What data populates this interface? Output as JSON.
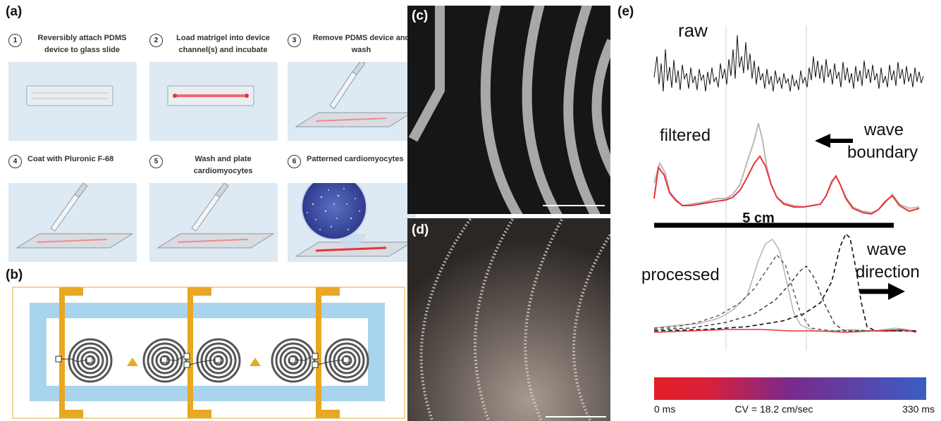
{
  "panel_labels": {
    "a": "(a)",
    "b": "(b)",
    "c": "(c)",
    "d": "(d)",
    "e": "(e)"
  },
  "steps": [
    {
      "num": "1",
      "text": "Reversibly attach PDMS device to glass slide"
    },
    {
      "num": "2",
      "text": "Load matrigel into device channel(s) and incubate"
    },
    {
      "num": "3",
      "text": "Remove PDMS device and wash"
    },
    {
      "num": "4",
      "text": "Coat with Pluronic F-68"
    },
    {
      "num": "5",
      "text": "Wash and plate cardiomyocytes"
    },
    {
      "num": "6",
      "text": "Patterned cardiomyocytes"
    }
  ],
  "colors": {
    "gold": "#e8a823",
    "channel_blue": "#a9d4ee",
    "trace_red": "#e8333a",
    "trace_gray": "#b8b8b8",
    "colorbar_start": "#e41e26",
    "colorbar_mid": "#7a2a8c",
    "colorbar_end": "#3a5ec4"
  },
  "panel_e": {
    "label_raw": "raw",
    "label_filtered": "filtered",
    "label_wave_boundary_1": "wave",
    "label_wave_boundary_2": "boundary",
    "scale_label": "5 cm",
    "label_processed": "processed",
    "label_wave_direction_1": "wave",
    "label_wave_direction_2": "direction",
    "colorbar_min": "0 ms",
    "colorbar_center": "CV = 18.2 cm/sec",
    "colorbar_max": "330 ms"
  }
}
